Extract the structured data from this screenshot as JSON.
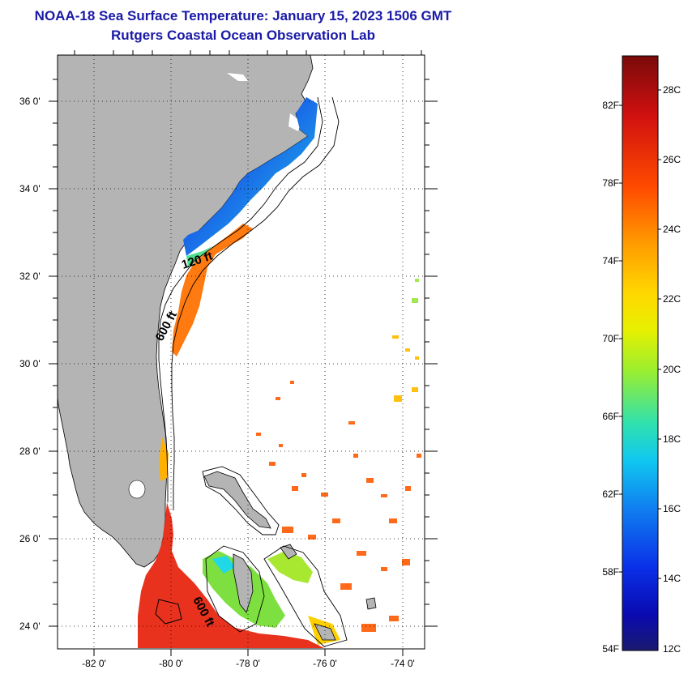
{
  "title": {
    "line1": "NOAA-18 Sea Surface Temperature:  January 15, 2023 1506 GMT",
    "line2": "Rutgers Coastal Ocean Observation Lab"
  },
  "map": {
    "lat_labels": [
      "36 0'",
      "34 0'",
      "32 0'",
      "30 0'",
      "28 0'",
      "26 0'",
      "24 0'"
    ],
    "lon_labels": [
      "-82 0'",
      "-80 0'",
      "-78 0'",
      "-76 0'",
      "-74 0'"
    ],
    "contour_labels": [
      "120 ft",
      "600 ft",
      "600 ft"
    ],
    "colors": {
      "land": "#b4b4b4",
      "water_nodata": "#ffffff",
      "warm": "#e8321e",
      "cold": "#1f5fd6"
    }
  },
  "colorbar": {
    "fahrenheit_labels": [
      "82F",
      "78F",
      "74F",
      "70F",
      "66F",
      "62F",
      "58F",
      "54F"
    ],
    "celsius_labels": [
      "28C",
      "26C",
      "24C",
      "22C",
      "20C",
      "18C",
      "16C",
      "14C",
      "12C"
    ],
    "colors_top_to_bottom": [
      "#7a0a0a",
      "#d01010",
      "#ff5a00",
      "#ff9f00",
      "#ffd800",
      "#e8f000",
      "#9aee30",
      "#2ee0b0",
      "#10c8f0",
      "#1080f0",
      "#0a30e8",
      "#0a0ab0",
      "#1a1a70"
    ]
  }
}
